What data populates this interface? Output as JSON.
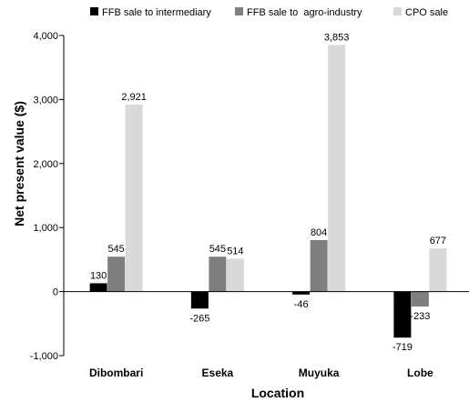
{
  "chart_data": {
    "type": "bar",
    "categories": [
      "Dibombari",
      "Eseka",
      "Muyuka",
      "Lobe"
    ],
    "series": [
      {
        "name": "FFB sale to intermediary",
        "color": "#000000",
        "values": [
          130,
          -265,
          -46,
          -719
        ],
        "labels": [
          "130",
          "-265",
          "-46",
          "-719"
        ]
      },
      {
        "name": "FFB sale to  agro-industry",
        "color": "#7f7f7f",
        "values": [
          545,
          545,
          804,
          -233
        ],
        "labels": [
          "545",
          "545",
          "804",
          "-233"
        ]
      },
      {
        "name": "CPO sale",
        "color": "#d9d9d9",
        "values": [
          2921,
          514,
          3853,
          677
        ],
        "labels": [
          "2,921",
          "514",
          "3,853",
          "677"
        ]
      }
    ],
    "yticks": [
      -1000,
      0,
      1000,
      2000,
      3000,
      4000
    ],
    "ytick_labels": [
      "-1,000",
      "0",
      "1,000",
      "2,000",
      "3,000",
      "4,000"
    ],
    "ylim": [
      -1000,
      4000
    ],
    "xlabel": "Location",
    "ylabel": "Net present value ($)",
    "legend_position": "top",
    "grid": false
  }
}
